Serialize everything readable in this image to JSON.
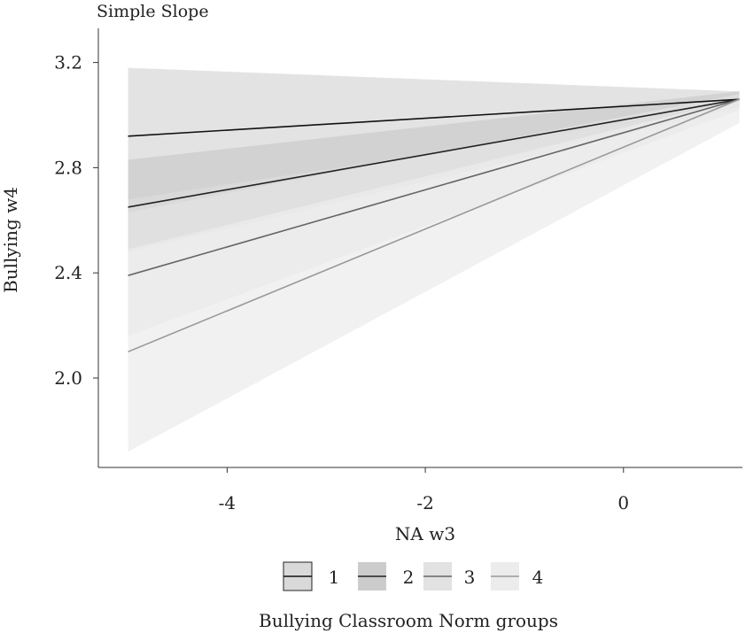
{
  "chart_data": {
    "type": "line",
    "title": "Simple Slope",
    "xlabel": "NA w3",
    "ylabel": "Bullying w4",
    "xlim": [
      -5.3,
      1.2
    ],
    "ylim": [
      1.66,
      3.33
    ],
    "x_ticks": [
      "-4",
      "-2",
      "0"
    ],
    "x_tick_values": [
      -4,
      -2,
      0
    ],
    "y_ticks": [
      "2.0",
      "2.4",
      "2.8",
      "3.2"
    ],
    "y_tick_values": [
      2.0,
      2.4,
      2.8,
      3.2
    ],
    "grid": false,
    "legend_position": "bottom",
    "legend_title": "Bullying Classroom Norm groups",
    "series": [
      {
        "name": "1",
        "x": [
          -5.0,
          1.17
        ],
        "y": [
          2.92,
          3.06
        ],
        "ci_lower": [
          2.68,
          3.03
        ],
        "ci_upper": [
          3.18,
          3.09
        ],
        "line_color": "#111111",
        "fill_color": "#d9d9d9"
      },
      {
        "name": "2",
        "x": [
          -5.0,
          1.17
        ],
        "y": [
          2.65,
          3.06
        ],
        "ci_lower": [
          2.48,
          3.03
        ],
        "ci_upper": [
          2.83,
          3.09
        ],
        "line_color": "#222222",
        "fill_color": "#cccccc"
      },
      {
        "name": "3",
        "x": [
          -5.0,
          1.17
        ],
        "y": [
          2.39,
          3.06
        ],
        "ci_lower": [
          2.16,
          3.02
        ],
        "ci_upper": [
          2.63,
          3.08
        ],
        "line_color": "#666666",
        "fill_color": "#e2e2e2"
      },
      {
        "name": "4",
        "x": [
          -5.0,
          1.17
        ],
        "y": [
          2.1,
          3.06
        ],
        "ci_lower": [
          1.72,
          2.97
        ],
        "ci_upper": [
          2.49,
          3.06
        ],
        "line_color": "#999999",
        "fill_color": "#ececec"
      }
    ]
  }
}
